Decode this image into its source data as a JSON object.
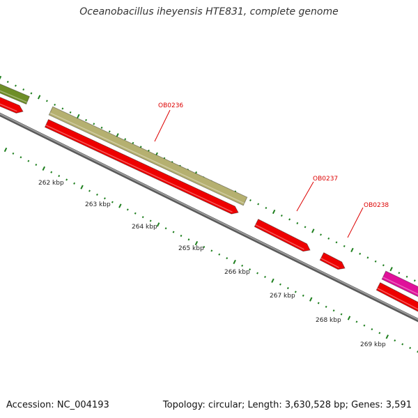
{
  "title": "Oceanobacillus iheyensis HTE831, complete genome",
  "footer": {
    "accession": "Accession: NC_004193",
    "summary": "Topology: circular; Length: 3,630,528 bp; Genes: 3,591"
  },
  "colors": {
    "backbone": "#8a8a8a",
    "gene_forward": "#ee0000",
    "feature_olive": "#b5b070",
    "feature_green": "#6e8e28",
    "feature_magenta": "#e0109a",
    "ticks": "#1e7f1e",
    "label": "#dd0000"
  },
  "scale_ticks": [
    "262 kbp",
    "263 kbp",
    "264 kbp",
    "265 kbp",
    "266 kbp",
    "267 kbp",
    "268 kbp",
    "269 kbp"
  ],
  "genes": [
    {
      "label": "OB0236"
    },
    {
      "label": "OB0237"
    },
    {
      "label": "OB0238"
    }
  ]
}
